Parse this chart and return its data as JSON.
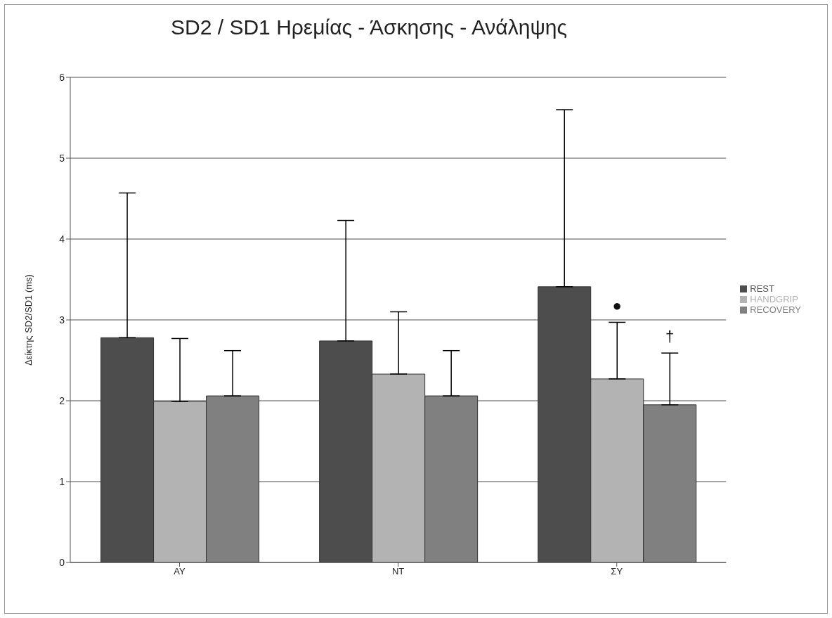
{
  "chart_data": {
    "type": "bar",
    "title": "SD2 / SD1 Ηρεμίας - Άσκησης -  Ανάληψης",
    "ylabel": "Δείκτης  SD2/SD1 (ms)",
    "categories": [
      "ΑΥ",
      "ΝΤ",
      "ΣΥ"
    ],
    "series": [
      {
        "name": "REST",
        "color": "#4d4d4d",
        "values": [
          2.78,
          2.74,
          3.41
        ],
        "errors": [
          [
            2.78,
            4.57
          ],
          [
            2.74,
            4.23
          ],
          [
            3.41,
            5.6
          ]
        ]
      },
      {
        "name": "HANDGRIP",
        "color": "#b3b3b3",
        "values": [
          1.99,
          2.33,
          2.27
        ],
        "errors": [
          [
            1.99,
            2.77
          ],
          [
            2.33,
            3.1
          ],
          [
            2.27,
            2.97
          ]
        ]
      },
      {
        "name": "RECOVERY",
        "color": "#808080",
        "values": [
          2.06,
          2.06,
          1.95
        ],
        "errors": [
          [
            2.06,
            2.62
          ],
          [
            2.06,
            2.62
          ],
          [
            1.95,
            2.59
          ]
        ]
      }
    ],
    "ylim": [
      0,
      6
    ],
    "yticks": [
      0,
      1,
      2,
      3,
      4,
      5,
      6
    ],
    "grid": "y",
    "legend": "right",
    "annotations": [
      "●",
      "†"
    ]
  }
}
